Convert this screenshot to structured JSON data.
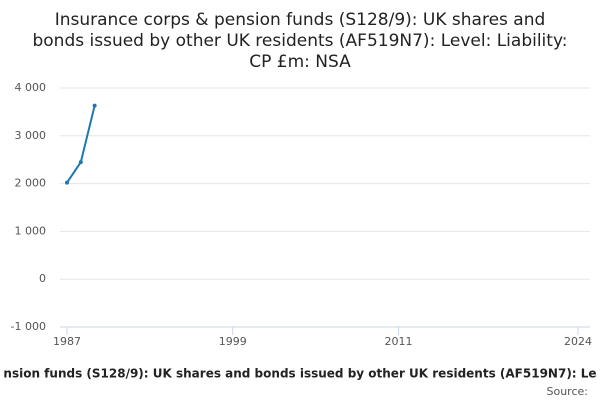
{
  "chart_data": {
    "type": "line",
    "title": "Insurance corps & pension funds (S128/9): UK shares and bonds issued by other UK residents (AF519N7): Level: Liability: CP £m: NSA",
    "x_label": "nsion funds (S128/9): UK shares and bonds issued by other UK residents (AF519N7): Le",
    "source": "Source:",
    "x": [
      1987,
      1988,
      1989
    ],
    "series": [
      {
        "name": "AF519N7",
        "color": "#1f77b4",
        "values": [
          2020,
          2450,
          3630
        ]
      }
    ],
    "xlim": [
      1987,
      2024
    ],
    "xticks": [
      1987,
      1999,
      2011,
      2024
    ],
    "ylim": [
      -1000,
      4000
    ],
    "yticks": [
      {
        "value": -1000,
        "label": "-1 000"
      },
      0,
      {
        "value": 1000,
        "label": "1 000"
      },
      {
        "value": 2000,
        "label": "2 000"
      },
      {
        "value": 3000,
        "label": "3 000"
      },
      {
        "value": 4000,
        "label": "4 000"
      }
    ],
    "grid": true
  }
}
